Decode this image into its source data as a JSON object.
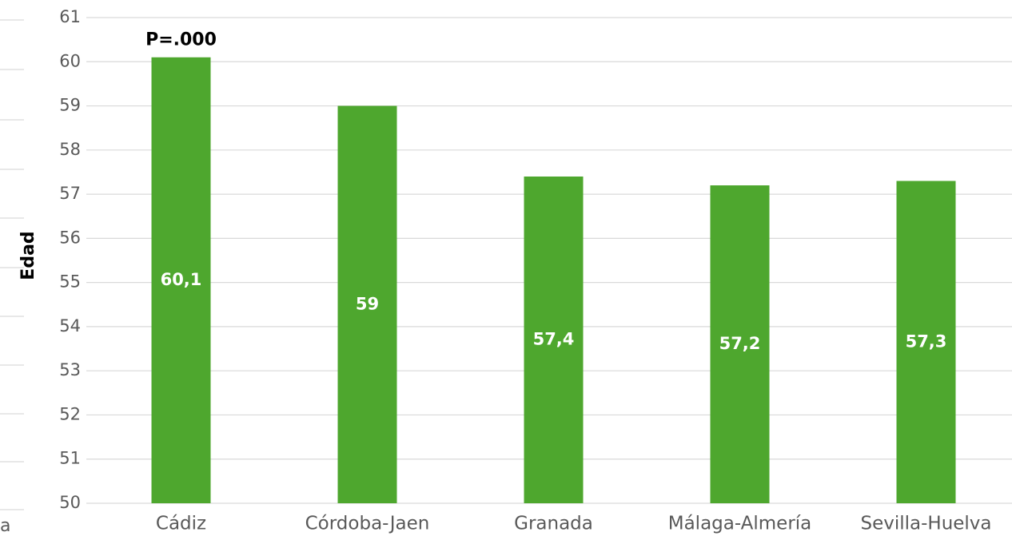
{
  "chart_data": {
    "type": "bar",
    "y_label": "Edad",
    "annotation": "P=.000",
    "edge_text": "a",
    "categories": [
      "Cádiz",
      "Córdoba-Jaen",
      "Granada",
      "Málaga-Almería",
      "Sevilla-Huelva"
    ],
    "values": [
      60.1,
      59,
      57.4,
      57.2,
      57.3
    ],
    "value_labels": [
      "60,1",
      "59",
      "57,4",
      "57,2",
      "57,3"
    ],
    "color": "#4ea72e",
    "ylim": [
      50,
      61
    ],
    "yticks": [
      50,
      51,
      52,
      53,
      54,
      55,
      56,
      57,
      58,
      59,
      60,
      61
    ],
    "grid": true
  }
}
